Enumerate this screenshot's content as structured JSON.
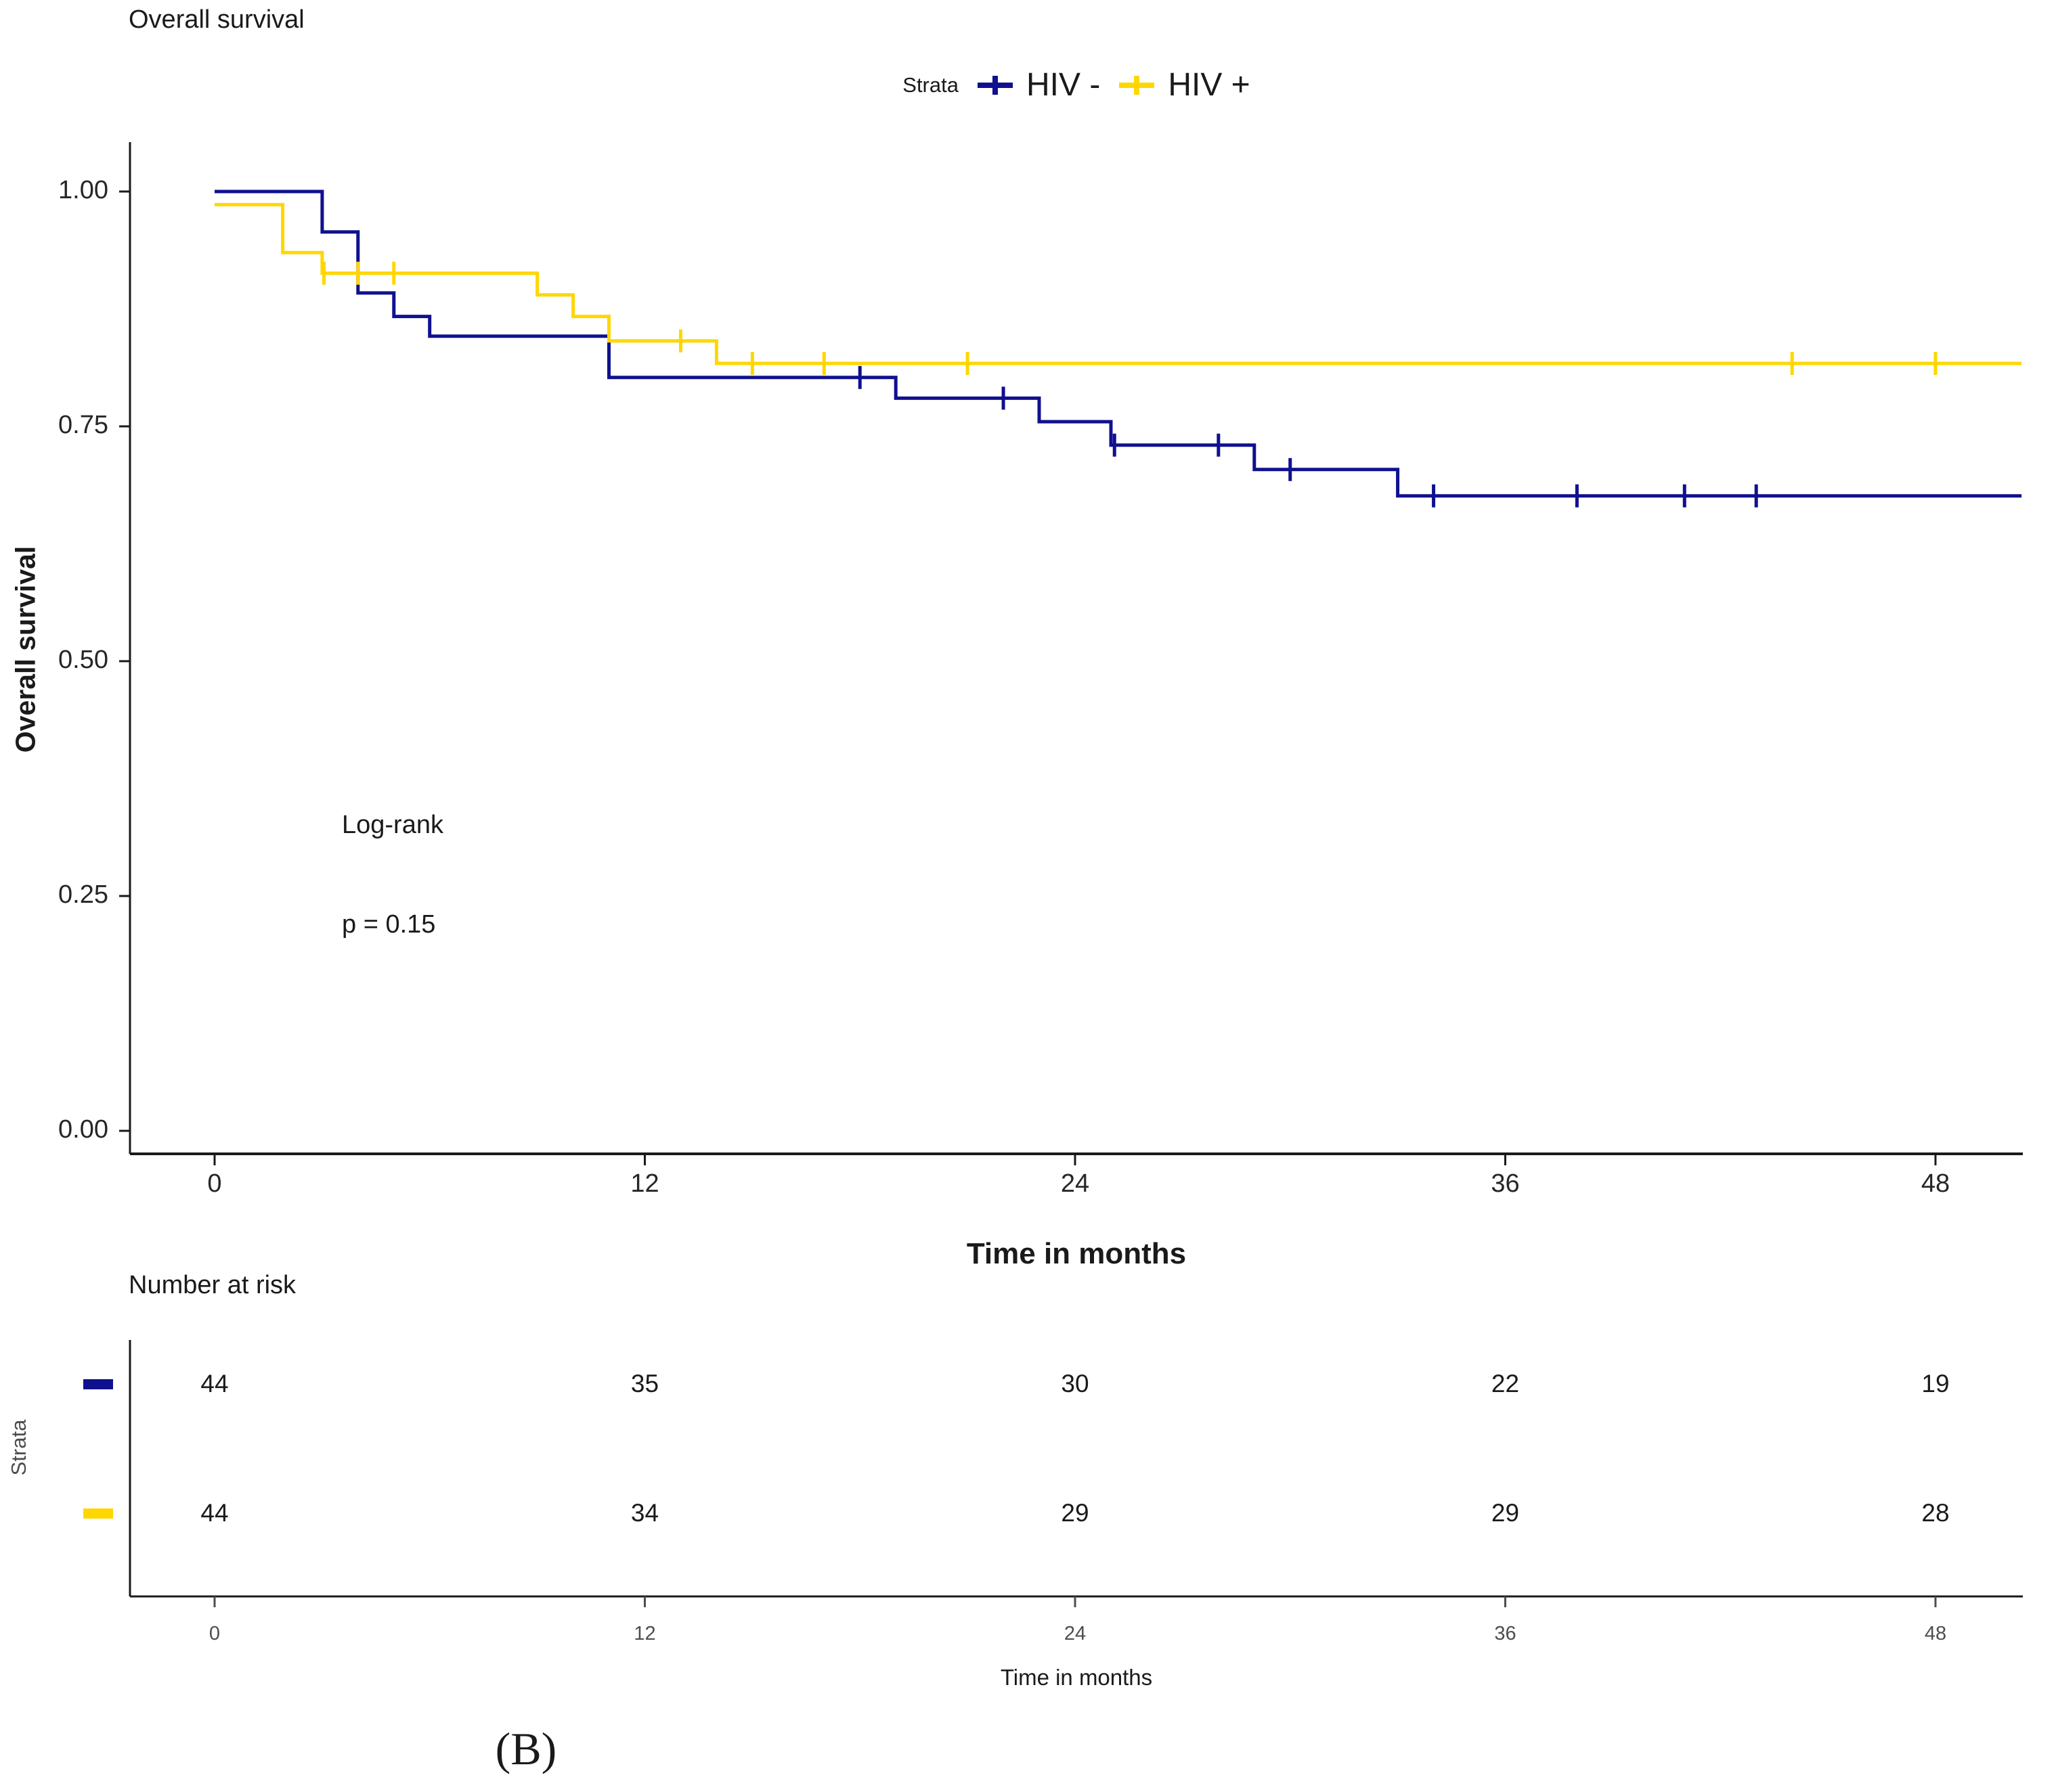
{
  "figure": {
    "panel_label": "(B)",
    "legend": {
      "title": "Strata",
      "items": [
        {
          "label": "HIV -",
          "color": "#10108F"
        },
        {
          "label": "HIV +",
          "color": "#FFD700"
        }
      ]
    },
    "annotation": {
      "line1": "Log-rank",
      "line2": "p = 0.15"
    }
  },
  "chart_data": {
    "type": "line",
    "subtype": "kaplan_meier_step_curves",
    "title": "Overall survival",
    "xlabel": "Time in months",
    "ylabel": "Overall survival",
    "xticks": [
      0,
      12,
      24,
      36,
      48
    ],
    "ytick_labels": [
      "1.00",
      "0.75",
      "0.50",
      "0.25",
      "0.00"
    ],
    "ytick_values": [
      1.0,
      0.75,
      0.5,
      0.25,
      0.0
    ],
    "xlim": [
      0,
      50.4
    ],
    "ylim": [
      0,
      1.0
    ],
    "grid": false,
    "legend_position": "top",
    "stats": {
      "test": "Log-rank",
      "p_text": "p = 0.15",
      "p_value": 0.15
    },
    "axis_color": "#1a1a1a",
    "series": [
      {
        "name": "HIV -",
        "color": "#10108F",
        "steps": [
          [
            0,
            1.0
          ],
          [
            3,
            0.957
          ],
          [
            4,
            0.892
          ],
          [
            5,
            0.867
          ],
          [
            6,
            0.846
          ],
          [
            11,
            0.802
          ],
          [
            19,
            0.78
          ],
          [
            23,
            0.755
          ],
          [
            25,
            0.73
          ],
          [
            29,
            0.704
          ],
          [
            33,
            0.676
          ]
        ],
        "end_time": 50.4,
        "censors": [
          [
            18,
            0.802
          ],
          [
            22,
            0.78
          ],
          [
            25.1,
            0.73
          ],
          [
            28,
            0.73
          ],
          [
            30,
            0.704
          ],
          [
            34,
            0.676
          ],
          [
            38,
            0.676
          ],
          [
            41,
            0.676
          ],
          [
            43,
            0.676
          ]
        ]
      },
      {
        "name": "HIV +",
        "color": "#FFD700",
        "steps": [
          [
            0,
            0.986
          ],
          [
            1.9,
            0.935
          ],
          [
            3,
            0.913
          ],
          [
            9,
            0.89
          ],
          [
            10,
            0.867
          ],
          [
            11,
            0.841
          ],
          [
            14,
            0.817
          ]
        ],
        "end_time": 50.4,
        "censors": [
          [
            3.05,
            0.913
          ],
          [
            4,
            0.913
          ],
          [
            5,
            0.913
          ],
          [
            13,
            0.841
          ],
          [
            15,
            0.817
          ],
          [
            17,
            0.817
          ],
          [
            21,
            0.817
          ],
          [
            44,
            0.817
          ],
          [
            48,
            0.817
          ]
        ]
      }
    ],
    "risk_table": {
      "title": "Number at risk",
      "strata_label": "Strata",
      "axis_label": "Time in months",
      "times": [
        0,
        12,
        24,
        36,
        48
      ],
      "rows": [
        {
          "name": "HIV -",
          "color": "#10108F",
          "counts": [
            44,
            35,
            30,
            22,
            19
          ]
        },
        {
          "name": "HIV +",
          "color": "#FFD700",
          "counts": [
            44,
            34,
            29,
            29,
            28
          ]
        }
      ]
    }
  }
}
